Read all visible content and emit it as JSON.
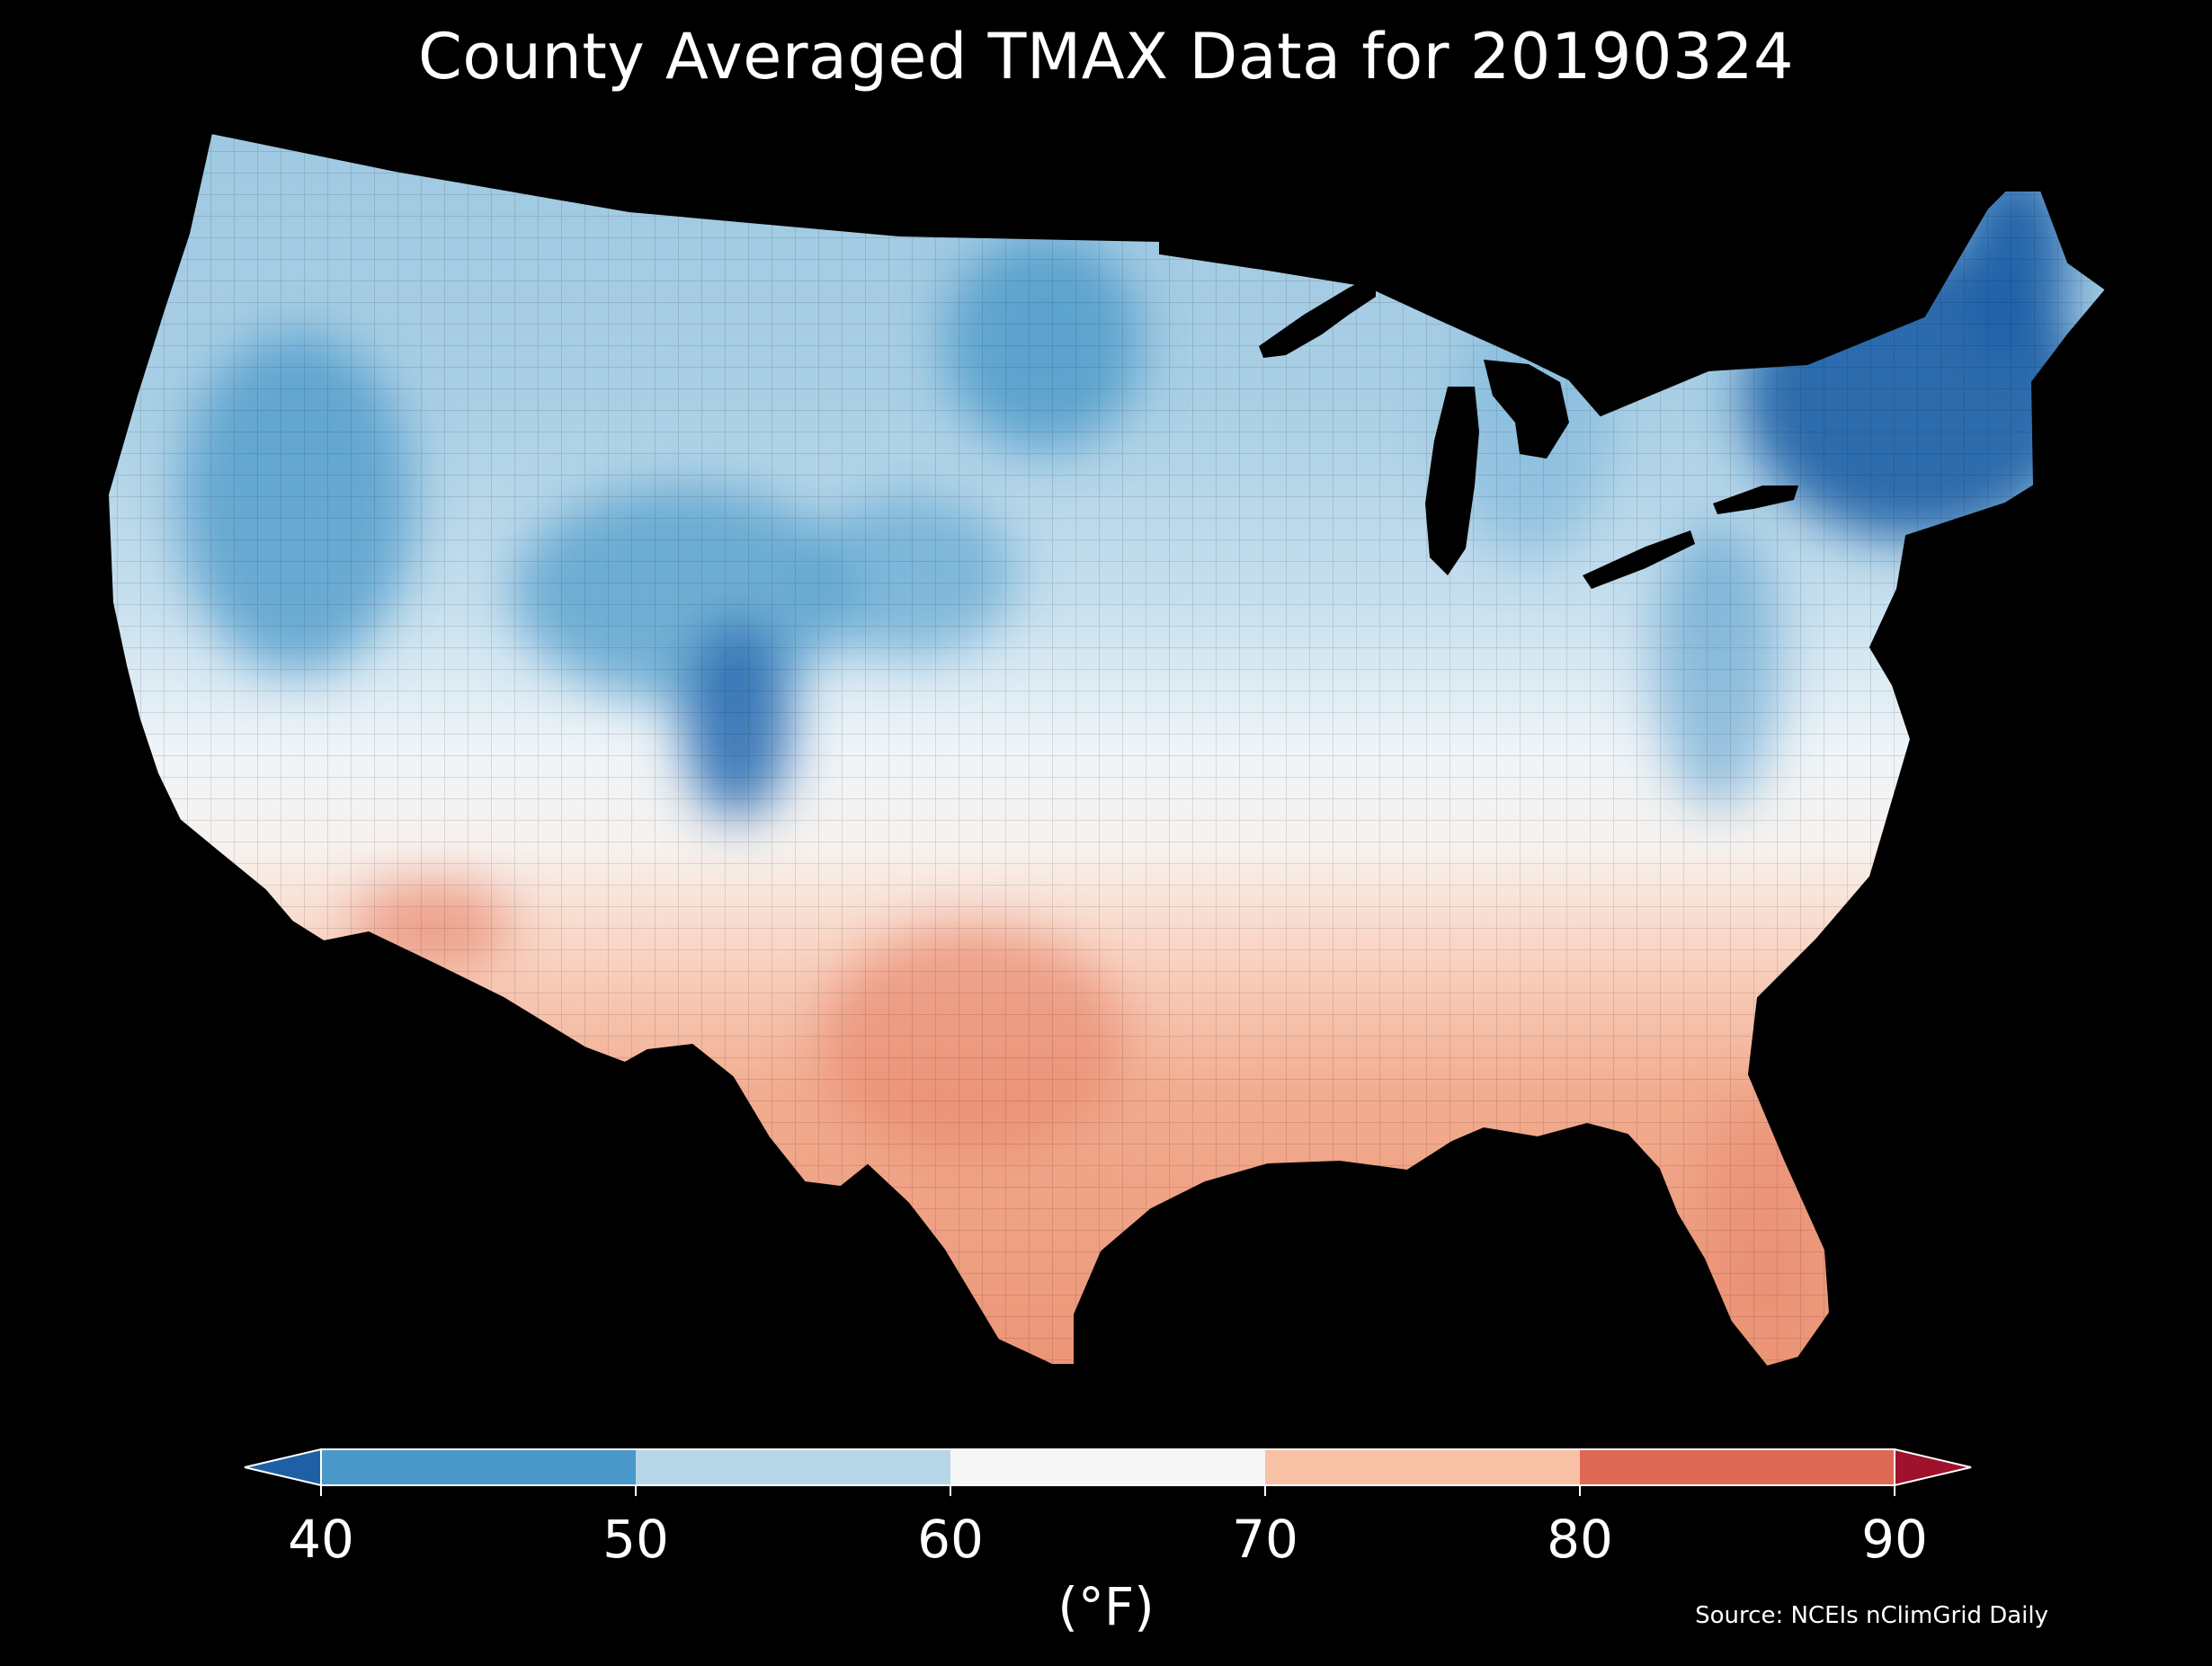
{
  "title": "County Averaged TMAX Data for 20190324",
  "source": "Source: NCEIs nClimGrid Daily",
  "colorbar": {
    "unit": "(°F)",
    "ticks": [
      40,
      50,
      60,
      70,
      80,
      90
    ],
    "ticks_text": [
      "40",
      "50",
      "60",
      "70",
      "80",
      "90"
    ],
    "bins": [
      {
        "from": 40,
        "to": 50,
        "color": "#4a98c9"
      },
      {
        "from": 50,
        "to": 60,
        "color": "#b6d6e8"
      },
      {
        "from": 60,
        "to": 70,
        "color": "#f6f6f6"
      },
      {
        "from": 70,
        "to": 80,
        "color": "#f8c0a5"
      },
      {
        "from": 80,
        "to": 90,
        "color": "#de6a56"
      }
    ],
    "under_color": "#1f5fa6",
    "over_color": "#a0112b",
    "extend": "both"
  },
  "map_data": {
    "type": "choropleth",
    "region": "Contiguous United States, by county",
    "variable": "TMAX",
    "background": "#000000",
    "colors": {
      "deep_blue": "#1f5fa6",
      "blue": "#4a98c9",
      "light_blue": "#b6d6e8",
      "white": "#f6f6f6",
      "light_red": "#f8c0a5",
      "red": "#e8896f",
      "lakes": "#000000"
    }
  }
}
